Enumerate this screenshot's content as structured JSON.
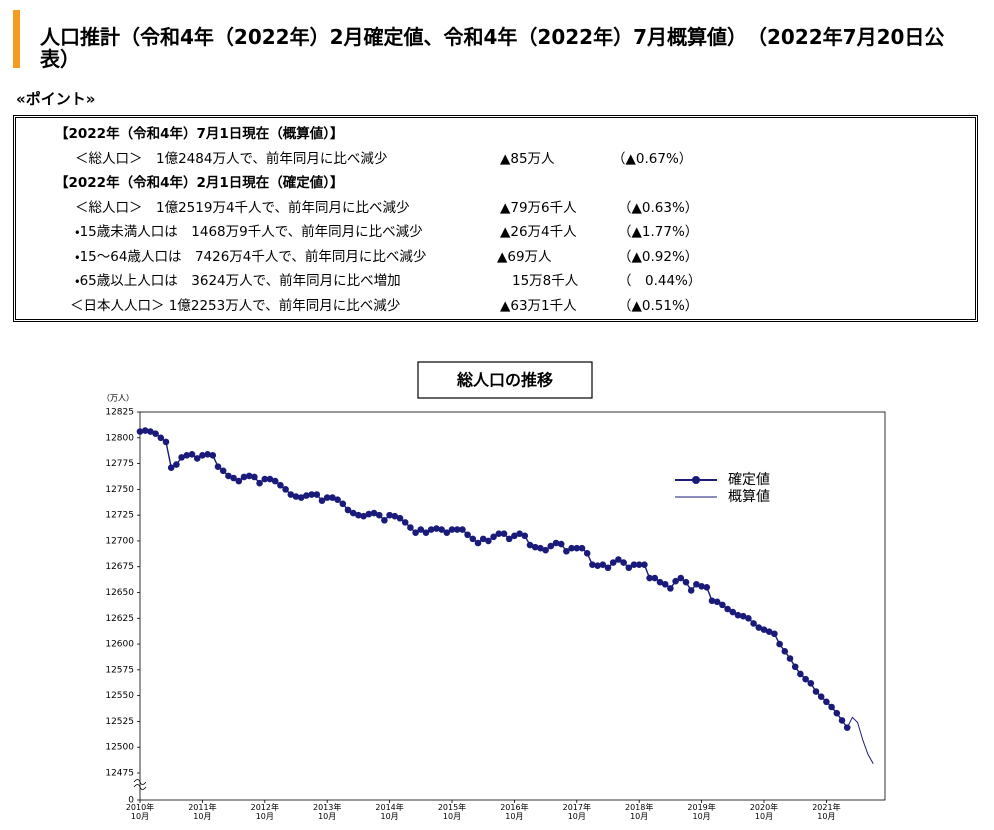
{
  "header": {
    "title": "人口推計（令和4年（2022年）2月確定値、令和4年（2022年）7月概算値）　（2022年7月20日公表）",
    "point_heading": "«ポイント»"
  },
  "points": {
    "rows": [
      {
        "text": "【2022年（令和4年）7月1日現在（概算値）】"
      },
      {
        "text": "＜総人口＞　1億2484万人で、前年同月に比べ減少",
        "change": "▲85万人",
        "rate": "（▲0.67%）"
      },
      {
        "text": "【2022年（令和4年）2月1日現在（確定値）】"
      },
      {
        "text": "＜総人口＞　1億2519万4千人で、前年同月に比べ減少",
        "change": "▲79万6千人",
        "rate": "（▲0.63%）"
      },
      {
        "text": "・15歳未満人口は　1468万9千人で、前年同月に比べ減少",
        "change": "▲26万4千人",
        "rate": "（▲1.77%）"
      },
      {
        "text": "・15～64歳人口は　7426万4千人で、前年同月に比べ減少",
        "change": "▲69万人",
        "rate": "（▲0.92%）"
      },
      {
        "text": "・65歳以上人口は　3624万人で、前年同月に比べ増加",
        "change": "15万8千人",
        "rate": "（　0.44%）"
      },
      {
        "text": "＜日本人人口＞ 1億2253万人で、前年同月に比べ減少",
        "change": "▲63万1千人",
        "rate": "（▲0.51%）"
      }
    ]
  },
  "chart_data": {
    "type": "line",
    "title": "総人口の推移",
    "y_label": "（万人）",
    "categories": [
      "2010年\n10月",
      null,
      null,
      null,
      null,
      null,
      null,
      null,
      null,
      null,
      null,
      null,
      "2011年\n10月",
      null,
      null,
      null,
      null,
      null,
      null,
      null,
      null,
      null,
      null,
      null,
      "2012年\n10月",
      null,
      null,
      null,
      null,
      null,
      null,
      null,
      null,
      null,
      null,
      null,
      "2013年\n10月",
      null,
      null,
      null,
      null,
      null,
      null,
      null,
      null,
      null,
      null,
      null,
      "2014年\n10月",
      null,
      null,
      null,
      null,
      null,
      null,
      null,
      null,
      null,
      null,
      null,
      "2015年\n10月",
      null,
      null,
      null,
      null,
      null,
      null,
      null,
      null,
      null,
      null,
      null,
      "2016年\n10月",
      null,
      null,
      null,
      null,
      null,
      null,
      null,
      null,
      null,
      null,
      null,
      "2017年\n10月",
      null,
      null,
      null,
      null,
      null,
      null,
      null,
      null,
      null,
      null,
      null,
      "2018年\n10月",
      null,
      null,
      null,
      null,
      null,
      null,
      null,
      null,
      null,
      null,
      null,
      "2019年\n10月",
      null,
      null,
      null,
      null,
      null,
      null,
      null,
      null,
      null,
      null,
      null,
      "2020年\n10月",
      null,
      null,
      null,
      null,
      null,
      null,
      null,
      null,
      null,
      null,
      null,
      "2021年\n10月",
      null,
      null,
      null,
      null,
      null,
      null,
      null,
      null,
      null
    ],
    "series": [
      {
        "name": "確定値",
        "color": "#1a1a7a",
        "markers": true,
        "values": [
          12806,
          12807,
          12806,
          12804,
          12800,
          12796,
          12771,
          12774,
          12781,
          12783,
          12784,
          12780,
          12783,
          12784,
          12783,
          12772,
          12768,
          12763,
          12761,
          12758,
          12762,
          12763,
          12762,
          12756,
          12760,
          12760,
          12758,
          12754,
          12750,
          12745,
          12743,
          12742,
          12744,
          12745,
          12745,
          12739,
          12742,
          12742,
          12740,
          12736,
          12730,
          12727,
          12725,
          12724,
          12726,
          12727,
          12725,
          12720,
          12725,
          12724,
          12722,
          12718,
          12713,
          12708,
          12711,
          12708,
          12711,
          12712,
          12711,
          12708,
          12711,
          12711,
          12711,
          12706,
          12702,
          12698,
          12702,
          12700,
          12704,
          12707,
          12707,
          12702,
          12705,
          12707,
          12705,
          12696,
          12694,
          12693,
          12691,
          12695,
          12698,
          12697,
          12690,
          12693,
          12693,
          12693,
          12688,
          12677,
          12676,
          12677,
          12674,
          12679,
          12682,
          12679,
          12674,
          12677,
          12677,
          12677,
          12664,
          12664,
          12660,
          12658,
          12654,
          12661,
          12664,
          12660,
          12652,
          12658,
          12656,
          12655,
          12642,
          12641,
          12638,
          12634,
          12631,
          12628,
          12627,
          12625,
          12620,
          12616,
          12614,
          12612,
          12610,
          12600,
          12593,
          12586,
          12578,
          12571,
          12566,
          12562,
          12554,
          12549,
          12544,
          12539,
          12533,
          12526,
          12519,
          null,
          null,
          null,
          null,
          null
        ]
      },
      {
        "name": "概算値",
        "color": "#1a1a7a",
        "markers": false,
        "values": [
          null,
          null,
          null,
          null,
          null,
          null,
          null,
          null,
          null,
          null,
          null,
          null,
          null,
          null,
          null,
          null,
          null,
          null,
          null,
          null,
          null,
          null,
          null,
          null,
          null,
          null,
          null,
          null,
          null,
          null,
          null,
          null,
          null,
          null,
          null,
          null,
          null,
          null,
          null,
          null,
          null,
          null,
          null,
          null,
          null,
          null,
          null,
          null,
          null,
          null,
          null,
          null,
          null,
          null,
          null,
          null,
          null,
          null,
          null,
          null,
          null,
          null,
          null,
          null,
          null,
          null,
          null,
          null,
          null,
          null,
          null,
          null,
          null,
          null,
          null,
          null,
          null,
          null,
          null,
          null,
          null,
          null,
          null,
          null,
          null,
          null,
          null,
          null,
          null,
          null,
          null,
          null,
          null,
          null,
          null,
          null,
          null,
          null,
          null,
          null,
          null,
          null,
          null,
          null,
          null,
          null,
          null,
          null,
          null,
          null,
          null,
          null,
          null,
          null,
          null,
          null,
          null,
          null,
          null,
          null,
          null,
          null,
          null,
          null,
          null,
          null,
          null,
          null,
          null,
          null,
          null,
          null,
          null,
          null,
          null,
          null,
          12519,
          12529,
          12524,
          12507,
          12493,
          12484
        ]
      }
    ],
    "ylim": [
      12475,
      12825
    ],
    "yticks": [
      12475,
      12500,
      12525,
      12550,
      12575,
      12600,
      12625,
      12650,
      12675,
      12700,
      12725,
      12750,
      12775,
      12800,
      12825
    ],
    "ybreak_tick": 0,
    "grid": false
  }
}
